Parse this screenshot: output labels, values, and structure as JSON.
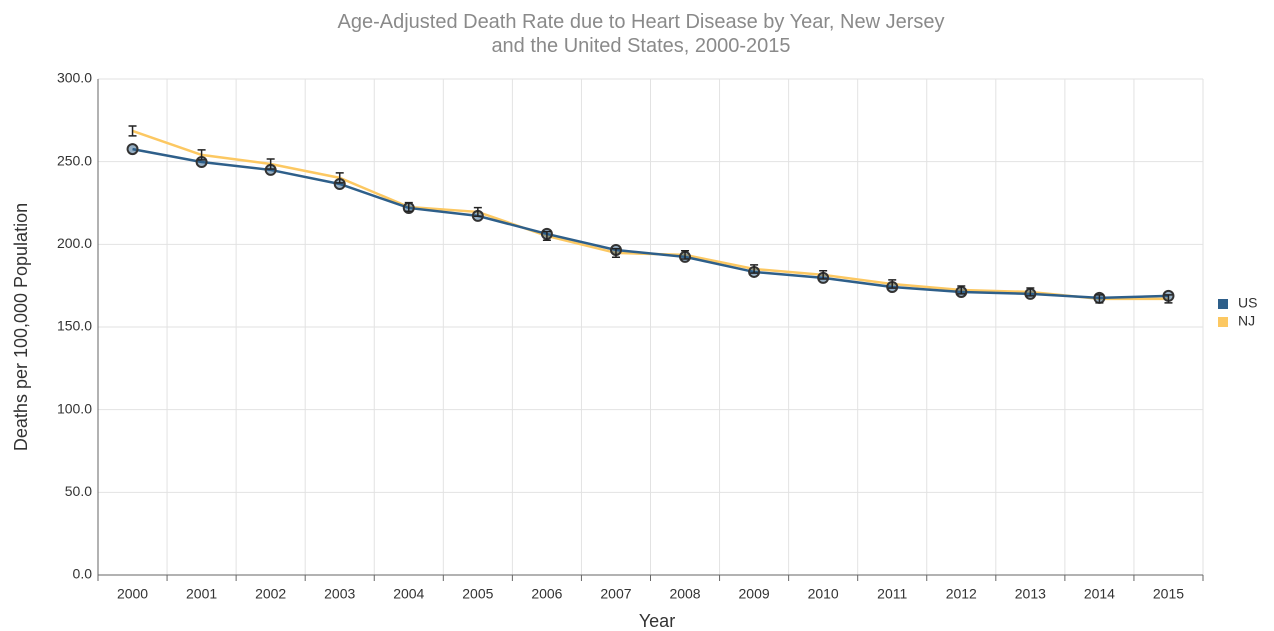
{
  "chart_data": {
    "type": "line",
    "title": "Age-Adjusted Death Rate due to Heart Disease by Year, New Jersey and the United States, 2000-2015",
    "x_label": "Year",
    "y_label": "Deaths per 100,000 Population",
    "categories": [
      "2000",
      "2001",
      "2002",
      "2003",
      "2004",
      "2005",
      "2006",
      "2007",
      "2008",
      "2009",
      "2010",
      "2011",
      "2012",
      "2013",
      "2014",
      "2015"
    ],
    "series": [
      {
        "name": "US",
        "color": "#2e5f8a",
        "marker": "circle",
        "values": [
          257.6,
          249.8,
          245.0,
          236.5,
          222.0,
          217.2,
          206.3,
          196.6,
          192.4,
          183.3,
          179.7,
          174.2,
          171.2,
          170.0,
          167.6,
          168.8
        ]
      },
      {
        "name": "NJ",
        "color": "#fcc862",
        "marker": "errorbar",
        "values": [
          268.6,
          254.1,
          248.6,
          240.2,
          222.6,
          219.6,
          205.1,
          194.8,
          193.6,
          185.1,
          181.5,
          176.0,
          172.4,
          171.2,
          167.0,
          167.0
        ],
        "errors": [
          3.0,
          3.0,
          3.0,
          3.0,
          2.6,
          2.6,
          2.6,
          2.6,
          2.5,
          2.5,
          2.5,
          2.5,
          2.4,
          2.4,
          2.4,
          2.4
        ]
      }
    ],
    "ylim": [
      0,
      300
    ],
    "yticks": [
      {
        "value": 0,
        "label": "0.0"
      },
      {
        "value": 50,
        "label": "50.0"
      },
      {
        "value": 100,
        "label": "100.0"
      },
      {
        "value": 150,
        "label": "150.0"
      },
      {
        "value": 200,
        "label": "200.0"
      },
      {
        "value": 250,
        "label": "250.0"
      },
      {
        "value": 300,
        "label": "300.0"
      }
    ],
    "grid": true,
    "legend": "right"
  }
}
